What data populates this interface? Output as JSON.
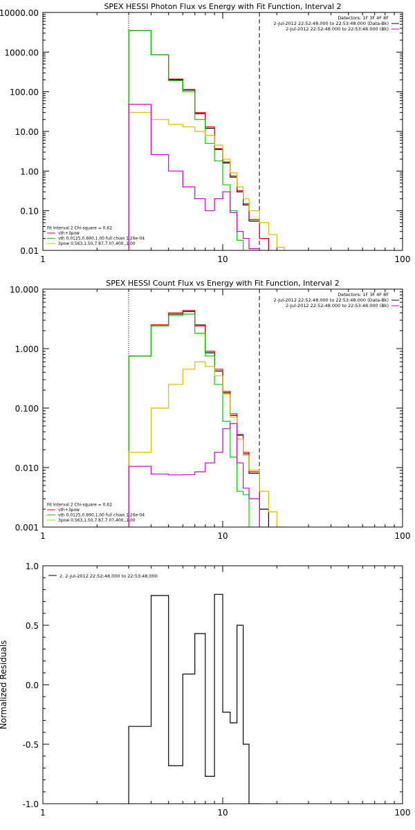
{
  "chart_data": [
    {
      "type": "line",
      "title": "SPEX HESSI Photon Flux vs Energy with Fit Function, Interval 2",
      "xscale": "log",
      "yscale": "log",
      "xlim": [
        1,
        100
      ],
      "ylim": [
        0.01,
        10000
      ],
      "xticks": [
        {
          "v": 1,
          "label": "1"
        },
        {
          "v": 10,
          "label": "10"
        },
        {
          "v": 100,
          "label": "100"
        }
      ],
      "yticks": [
        {
          "v": 0.01,
          "label": "0.01"
        },
        {
          "v": 0.1,
          "label": "0.10"
        },
        {
          "v": 1,
          "label": "1.00"
        },
        {
          "v": 10,
          "label": "10.00"
        },
        {
          "v": 100,
          "label": "100.00"
        },
        {
          "v": 1000,
          "label": "1000.00"
        },
        {
          "v": 10000,
          "label": "10000.00"
        }
      ],
      "vlines": [
        {
          "x": 3.0,
          "style": "dotted"
        },
        {
          "x": 16.0,
          "style": "dashed"
        }
      ],
      "legend_top": {
        "lines": [
          {
            "text": "Detectors: 1F 3F 4F 8F",
            "color": ""
          },
          {
            "text": "2-Jul-2012 22:52:48.000 to 22:53:48.000 (Data-Bk)",
            "color": "#000000"
          },
          {
            "text": "2-Jul-2012 22:52:48.000 to 22:53:48.000 (Bk)",
            "color": "#cc00cc"
          }
        ]
      },
      "legend_bottom": {
        "lines": [
          {
            "text": "Fit Interval 2   Chi-square = 0.62",
            "color": ""
          },
          {
            "text": "vth+3pow",
            "color": "#ee0000"
          },
          {
            "text": "vth 0.0125,0.690,1.00  full chian 1.26e-04",
            "color": "#00cc00"
          },
          {
            "text": "3pow 0.563,1.50,7.87,7.07,400.,1.00",
            "color": "#ddbb00"
          }
        ]
      },
      "series": [
        {
          "color": "#000000",
          "edges": [
            3,
            4,
            5,
            6,
            7,
            8,
            9,
            10,
            11,
            12,
            13,
            14,
            16,
            18
          ],
          "values": [
            3500,
            850,
            200,
            110,
            28,
            12,
            3.5,
            1.6,
            0.7,
            0.3,
            0.14,
            0.055,
            0.02
          ]
        },
        {
          "color": "#ee0000",
          "edges": [
            3,
            4,
            5,
            6,
            7,
            8,
            9,
            10,
            11,
            12,
            13,
            14,
            16,
            18
          ],
          "values": [
            3500,
            860,
            210,
            115,
            30,
            13,
            3.7,
            1.7,
            0.75,
            0.32,
            0.15,
            0.06,
            0.02
          ]
        },
        {
          "color": "#00cc00",
          "edges": [
            3,
            4,
            5,
            6,
            7,
            8,
            9,
            10,
            11,
            12,
            13
          ],
          "values": [
            3500,
            850,
            190,
            100,
            20,
            5,
            1.8,
            0.45,
            0.1,
            0.018
          ]
        },
        {
          "color": "#ddbb00",
          "edges": [
            3,
            4,
            5,
            6,
            7,
            8,
            9,
            10,
            11,
            12,
            13,
            14,
            16,
            18,
            20,
            22
          ],
          "values": [
            30,
            20,
            15,
            13,
            10,
            8,
            4.5,
            2,
            0.9,
            0.4,
            0.2,
            0.1,
            0.05,
            0.025,
            0.012
          ]
        },
        {
          "color": "#cc00cc",
          "edges": [
            3,
            4,
            5,
            6,
            7,
            8,
            9,
            10,
            11,
            12,
            13,
            14,
            16
          ],
          "values": [
            48,
            2.6,
            1.0,
            0.4,
            0.2,
            0.1,
            0.2,
            0.3,
            0.09,
            0.03,
            0.02,
            0.011
          ]
        }
      ]
    },
    {
      "type": "line",
      "title": "SPEX HESSI Count Flux vs Energy with Fit Function, Interval 2",
      "xscale": "log",
      "yscale": "log",
      "xlim": [
        1,
        100
      ],
      "ylim": [
        0.001,
        10
      ],
      "xticks": [
        {
          "v": 1,
          "label": "1"
        },
        {
          "v": 10,
          "label": "10"
        },
        {
          "v": 100,
          "label": "100"
        }
      ],
      "yticks": [
        {
          "v": 0.001,
          "label": "0.001"
        },
        {
          "v": 0.01,
          "label": "0.010"
        },
        {
          "v": 0.1,
          "label": "0.100"
        },
        {
          "v": 1,
          "label": "1.000"
        },
        {
          "v": 10,
          "label": "10.000"
        }
      ],
      "vlines": [
        {
          "x": 3.0,
          "style": "dotted"
        },
        {
          "x": 16.0,
          "style": "dashed"
        }
      ],
      "legend_top": {
        "lines": [
          {
            "text": "Detectors: 1F 3F 4F 8F",
            "color": ""
          },
          {
            "text": "2-Jul-2012 22:52:48.000 to 22:53:48.000 (Data-Bk)",
            "color": "#000000"
          },
          {
            "text": "2-Jul-2012 22:52:48.000 to 22:53:48.000 (Bk)",
            "color": "#cc00cc"
          }
        ]
      },
      "legend_bottom": {
        "lines": [
          {
            "text": "Fit Interval 2   Chi-square = 0.62",
            "color": ""
          },
          {
            "text": "vth+3pow",
            "color": "#ee0000"
          },
          {
            "text": "vth 0.0125,0.690,1.00  full chian 1.26e-04",
            "color": "#00cc00"
          },
          {
            "text": "3pow 0.563,1.50,7.87,7.07,400.,1.00",
            "color": "#ddbb00"
          }
        ]
      },
      "series": [
        {
          "color": "#000000",
          "edges": [
            3,
            4,
            5,
            6,
            7,
            8,
            9,
            10,
            11,
            12,
            13,
            14,
            16,
            18
          ],
          "values": [
            0.75,
            2.5,
            3.8,
            4.2,
            2.5,
            0.85,
            0.42,
            0.18,
            0.075,
            0.035,
            0.017,
            0.008,
            0.002
          ]
        },
        {
          "color": "#ee0000",
          "edges": [
            3,
            4,
            5,
            6,
            7,
            8,
            9,
            10,
            11,
            12,
            13,
            14,
            16
          ],
          "values": [
            0.75,
            2.5,
            4.0,
            4.4,
            2.4,
            0.9,
            0.45,
            0.19,
            0.08,
            0.036,
            0.018,
            0.0085
          ]
        },
        {
          "color": "#00cc00",
          "edges": [
            3,
            4,
            5,
            6,
            7,
            8,
            9,
            10,
            11,
            12,
            13,
            14
          ],
          "values": [
            0.75,
            2.4,
            3.6,
            3.8,
            1.8,
            0.75,
            0.25,
            0.06,
            0.015,
            0.004,
            0.0035
          ]
        },
        {
          "color": "#ddbb00",
          "edges": [
            3,
            4,
            5,
            6,
            7,
            8,
            9,
            10,
            11,
            12,
            13,
            14,
            16,
            18,
            20,
            22
          ],
          "values": [
            0.018,
            0.1,
            0.25,
            0.45,
            0.6,
            0.5,
            0.35,
            0.17,
            0.07,
            0.03,
            0.016,
            0.009,
            0.004,
            0.0018,
            0.001
          ]
        },
        {
          "color": "#cc00cc",
          "edges": [
            3,
            4,
            5,
            6,
            7,
            8,
            9,
            10,
            11,
            12,
            13,
            14,
            16
          ],
          "values": [
            0.0105,
            0.0078,
            0.0075,
            0.0076,
            0.0085,
            0.012,
            0.018,
            0.045,
            0.055,
            0.012,
            0.0045,
            0.003
          ]
        }
      ]
    },
    {
      "type": "line",
      "title": "",
      "ylabel": "Normalized Residuals",
      "xscale": "log",
      "yscale": "linear",
      "xlim": [
        1,
        100
      ],
      "ylim": [
        -1.0,
        1.0
      ],
      "xticks": [
        {
          "v": 1,
          "label": "1"
        },
        {
          "v": 10,
          "label": "10"
        },
        {
          "v": 100,
          "label": "100"
        }
      ],
      "yticks": [
        {
          "v": -1.0,
          "label": "-1.0"
        },
        {
          "v": -0.5,
          "label": "-0.5"
        },
        {
          "v": 0.0,
          "label": "0.0"
        },
        {
          "v": 0.5,
          "label": "0.5"
        },
        {
          "v": 1.0,
          "label": "1.0"
        }
      ],
      "legend_top": {
        "lines": [
          {
            "text": "2.  2-Jul-2012 22:52:48.000 to 22:53:48.000",
            "color": "#000000"
          }
        ]
      },
      "series": [
        {
          "color": "#000000",
          "edges": [
            3.0,
            4.0,
            5.0,
            6.0,
            7.0,
            8.0,
            9.0,
            10.0,
            11.0,
            12.0,
            13.0,
            14.0,
            16.0
          ],
          "values": [
            -0.35,
            0.75,
            -0.68,
            0.09,
            0.43,
            -0.77,
            0.76,
            -0.23,
            -0.32,
            0.5,
            -0.5,
            -1.0
          ]
        }
      ]
    }
  ]
}
